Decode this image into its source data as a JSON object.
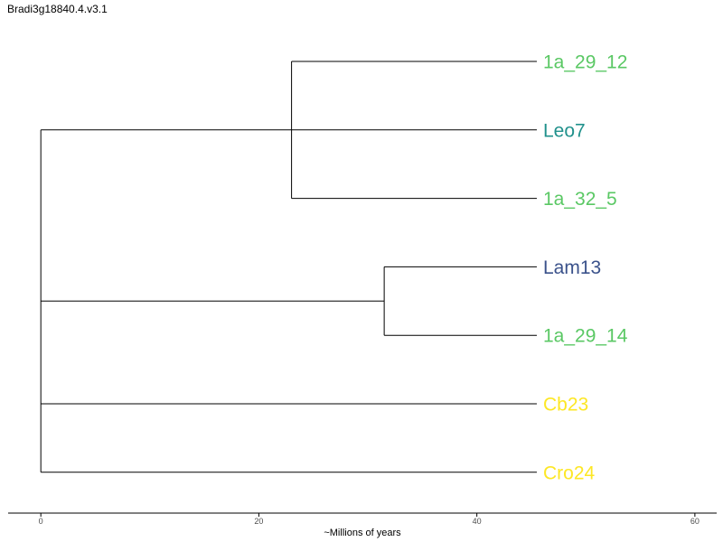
{
  "title": "Bradi3g18840.4.v3.1",
  "chart_data": {
    "type": "phylogenetic-tree",
    "title": "Bradi3g18840.4.v3.1",
    "xlabel": "~Millions of years",
    "xlim": [
      -3,
      62
    ],
    "x_ticks": [
      "0",
      "20",
      "40",
      "60"
    ],
    "tips": [
      {
        "name": "1a_29_12",
        "color": "#5ac864"
      },
      {
        "name": "Leo7",
        "color": "#21918c"
      },
      {
        "name": "1a_32_5",
        "color": "#5ac864"
      },
      {
        "name": "Lam13",
        "color": "#3b528b"
      },
      {
        "name": "1a_29_14",
        "color": "#5ac864"
      },
      {
        "name": "Cb23",
        "color": "#fde725"
      },
      {
        "name": "Cro24",
        "color": "#fde725"
      }
    ],
    "tip_depth": 45.5,
    "internal_nodes": [
      {
        "id": "n_12_5",
        "height": 23,
        "children": [
          "1a_29_12",
          "1a_32_5"
        ]
      },
      {
        "id": "n_lam_14",
        "height": 31.5,
        "children": [
          "Lam13",
          "1a_29_14"
        ]
      }
    ],
    "root_branches": [
      {
        "x": 0,
        "target": "Leo7"
      },
      {
        "x": 0,
        "target": "n_lam_14"
      },
      {
        "x": 0,
        "target": "Cb23"
      },
      {
        "x": 0,
        "target": "Cro24"
      }
    ]
  }
}
